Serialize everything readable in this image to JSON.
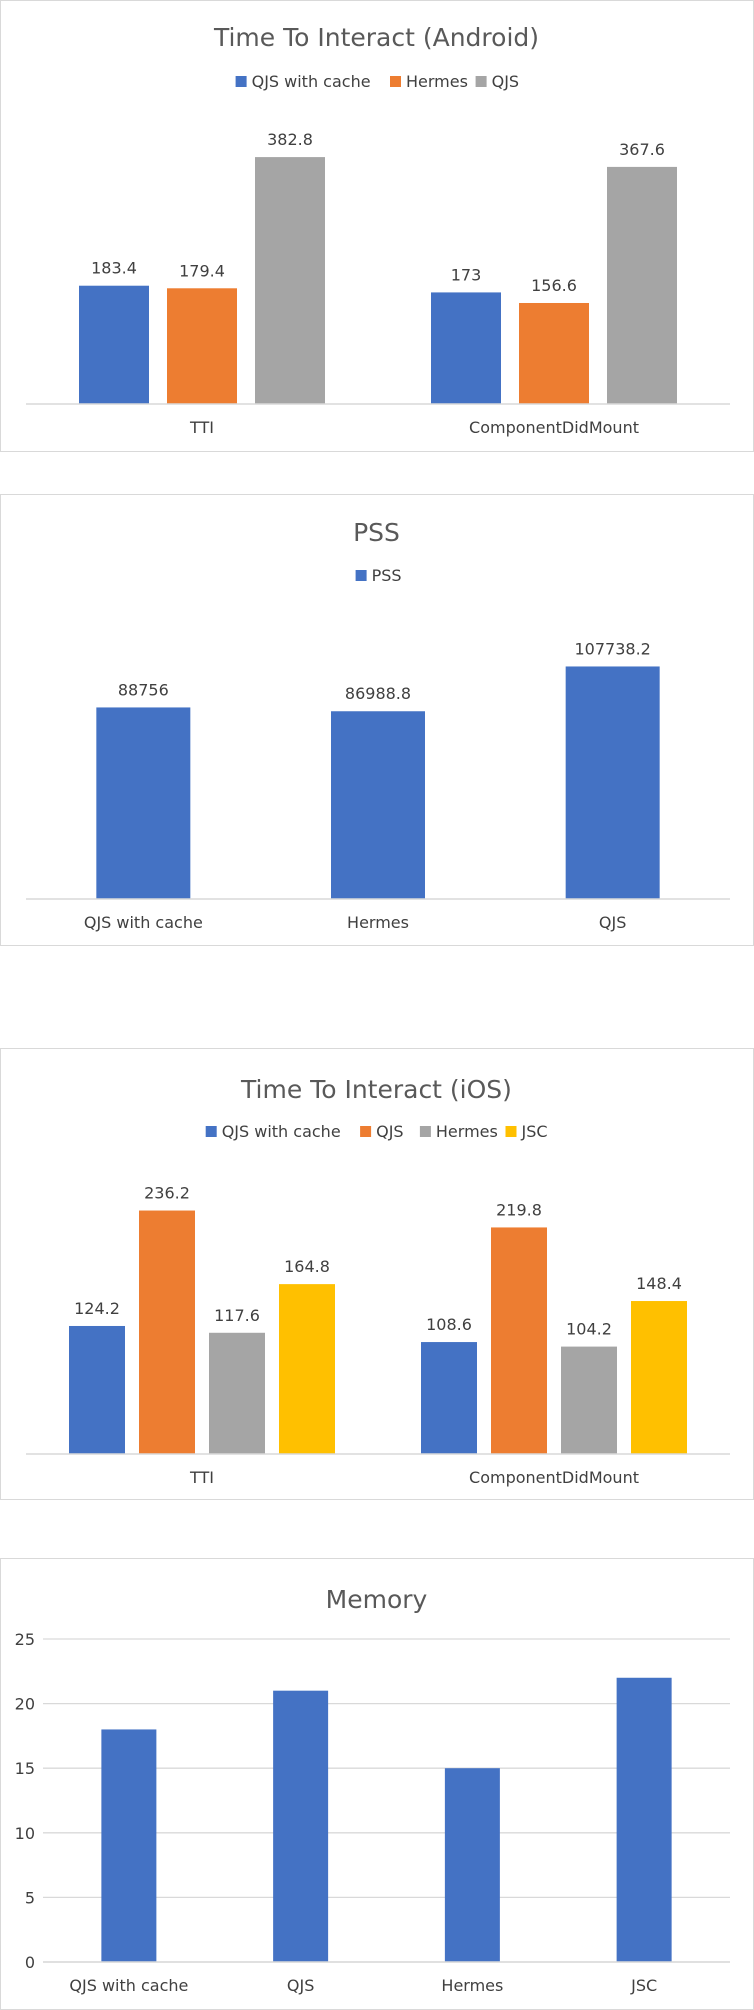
{
  "chart_data": [
    {
      "type": "bar",
      "title": "Time To Interact (Android)",
      "categories": [
        "TTI",
        "ComponentDidMount"
      ],
      "series": [
        {
          "name": "QJS with cache",
          "color": "#4472c4",
          "values": [
            183.4,
            173
          ]
        },
        {
          "name": "Hermes",
          "color": "#ed7d31",
          "values": [
            179.4,
            156.6
          ]
        },
        {
          "name": "QJS",
          "color": "#a5a5a5",
          "values": [
            382.8,
            367.6
          ]
        }
      ],
      "data_labels": [
        [
          "183.4",
          "173"
        ],
        [
          "179.4",
          "156.6"
        ],
        [
          "382.8",
          "367.6"
        ]
      ],
      "ylim": [
        0,
        400
      ],
      "legend": "top",
      "grid": false
    },
    {
      "type": "bar",
      "title": "PSS",
      "categories": [
        "QJS with cache",
        "Hermes",
        "QJS"
      ],
      "series": [
        {
          "name": "PSS",
          "color": "#4472c4",
          "values": [
            88756,
            86988.8,
            107738.2
          ]
        }
      ],
      "data_labels": [
        [
          "88756",
          "86988.8",
          "107738.2"
        ]
      ],
      "ylim": [
        0,
        120000
      ],
      "legend": "top",
      "grid": false
    },
    {
      "type": "bar",
      "title": "Time To Interact (iOS)",
      "categories": [
        "TTI",
        "ComponentDidMount"
      ],
      "series": [
        {
          "name": "QJS with cache",
          "color": "#4472c4",
          "values": [
            124.2,
            108.6
          ]
        },
        {
          "name": "QJS",
          "color": "#ed7d31",
          "values": [
            236.2,
            219.8
          ]
        },
        {
          "name": "Hermes",
          "color": "#a5a5a5",
          "values": [
            117.6,
            104.2
          ]
        },
        {
          "name": "JSC",
          "color": "#ffc000",
          "values": [
            164.8,
            148.4
          ]
        }
      ],
      "data_labels": [
        [
          "124.2",
          "108.6"
        ],
        [
          "236.2",
          "219.8"
        ],
        [
          "117.6",
          "104.2"
        ],
        [
          "164.8",
          "148.4"
        ]
      ],
      "ylim": [
        0,
        260
      ],
      "legend": "top",
      "grid": false
    },
    {
      "type": "bar",
      "title": "Memory",
      "categories": [
        "QJS with cache",
        "QJS",
        "Hermes",
        "JSC"
      ],
      "series": [
        {
          "color": "#4472c4",
          "values": [
            18,
            21,
            15,
            22
          ]
        }
      ],
      "yticks": [
        "0",
        "5",
        "10",
        "15",
        "20",
        "25"
      ],
      "ylim": [
        0,
        25
      ],
      "legend": "none",
      "grid": true
    }
  ]
}
